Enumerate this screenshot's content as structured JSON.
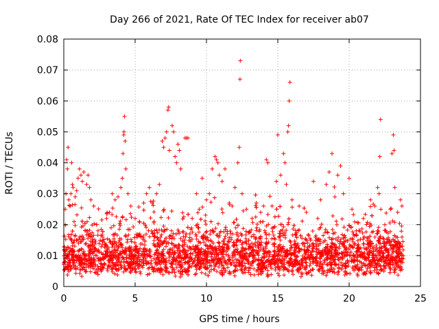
{
  "chart_data": {
    "type": "scatter",
    "title": "Day 266 of 2021, Rate Of TEC Index for receiver ab07",
    "xlabel": "GPS time / hours",
    "ylabel": "ROTI / TECUs",
    "xlim": [
      0,
      25
    ],
    "ylim": [
      0,
      0.08
    ],
    "x_ticks": [
      0,
      5,
      10,
      15,
      20,
      25
    ],
    "x_tick_labels": [
      "0",
      "5",
      "10",
      "15",
      "20",
      "25"
    ],
    "y_ticks": [
      0,
      0.01,
      0.02,
      0.03,
      0.04,
      0.05,
      0.06,
      0.07,
      0.08
    ],
    "y_tick_labels": [
      "0",
      "0.01",
      "0.02",
      "0.03",
      "0.04",
      "0.05",
      "0.06",
      "0.07",
      "0.08"
    ],
    "grid": true,
    "marker": "+",
    "color": "#ff0000",
    "series": [
      {
        "name": "ROTI",
        "points": [
          [
            0.05,
            0.012
          ],
          [
            0.1,
            0.025
          ],
          [
            0.15,
            0.03
          ],
          [
            0.2,
            0.041
          ],
          [
            0.25,
            0.038
          ],
          [
            0.3,
            0.045
          ],
          [
            0.35,
            0.028
          ],
          [
            0.45,
            0.026
          ],
          [
            0.5,
            0.03
          ],
          [
            0.55,
            0.04
          ],
          [
            0.6,
            0.033
          ],
          [
            0.65,
            0.032
          ],
          [
            0.8,
            0.029
          ],
          [
            0.9,
            0.031
          ],
          [
            1.0,
            0.035
          ],
          [
            1.1,
            0.038
          ],
          [
            1.2,
            0.036
          ],
          [
            1.3,
            0.034
          ],
          [
            1.4,
            0.037
          ],
          [
            1.6,
            0.033
          ],
          [
            1.7,
            0.036
          ],
          [
            1.8,
            0.032
          ],
          [
            1.9,
            0.028
          ],
          [
            2.1,
            0.026
          ],
          [
            2.4,
            0.018
          ],
          [
            2.7,
            0.016
          ],
          [
            3.0,
            0.022
          ],
          [
            3.2,
            0.024
          ],
          [
            3.4,
            0.03
          ],
          [
            3.6,
            0.028
          ],
          [
            3.8,
            0.029
          ],
          [
            4.0,
            0.032
          ],
          [
            4.1,
            0.035
          ],
          [
            4.15,
            0.043
          ],
          [
            4.2,
            0.049
          ],
          [
            4.22,
            0.05
          ],
          [
            4.25,
            0.055
          ],
          [
            4.3,
            0.047
          ],
          [
            4.35,
            0.038
          ],
          [
            4.5,
            0.03
          ],
          [
            4.7,
            0.026
          ],
          [
            5.0,
            0.022
          ],
          [
            5.3,
            0.021
          ],
          [
            5.6,
            0.027
          ],
          [
            5.8,
            0.03
          ],
          [
            6.0,
            0.032
          ],
          [
            6.2,
            0.027
          ],
          [
            6.5,
            0.03
          ],
          [
            6.7,
            0.033
          ],
          [
            6.9,
            0.047
          ],
          [
            7.0,
            0.045
          ],
          [
            7.1,
            0.048
          ],
          [
            7.2,
            0.05
          ],
          [
            7.3,
            0.057
          ],
          [
            7.35,
            0.058
          ],
          [
            7.4,
            0.044
          ],
          [
            7.6,
            0.052
          ],
          [
            7.7,
            0.05
          ],
          [
            7.8,
            0.042
          ],
          [
            7.9,
            0.04
          ],
          [
            8.0,
            0.046
          ],
          [
            8.1,
            0.044
          ],
          [
            8.2,
            0.038
          ],
          [
            8.5,
            0.048
          ],
          [
            8.6,
            0.048
          ],
          [
            8.7,
            0.048
          ],
          [
            9.0,
            0.022
          ],
          [
            9.3,
            0.03
          ],
          [
            9.5,
            0.025
          ],
          [
            9.7,
            0.035
          ],
          [
            10.0,
            0.028
          ],
          [
            10.2,
            0.03
          ],
          [
            10.4,
            0.038
          ],
          [
            10.6,
            0.042
          ],
          [
            10.7,
            0.041
          ],
          [
            10.8,
            0.04
          ],
          [
            10.9,
            0.036
          ],
          [
            11.1,
            0.034
          ],
          [
            11.3,
            0.038
          ],
          [
            11.6,
            0.027
          ],
          [
            11.8,
            0.026
          ],
          [
            12.0,
            0.032
          ],
          [
            12.2,
            0.04
          ],
          [
            12.3,
            0.045
          ],
          [
            12.35,
            0.067
          ],
          [
            12.37,
            0.073
          ],
          [
            12.5,
            0.03
          ],
          [
            12.8,
            0.025
          ],
          [
            13.2,
            0.022
          ],
          [
            13.5,
            0.027
          ],
          [
            13.8,
            0.024
          ],
          [
            14.0,
            0.026
          ],
          [
            14.2,
            0.041
          ],
          [
            14.3,
            0.04
          ],
          [
            14.6,
            0.026
          ],
          [
            14.9,
            0.034
          ],
          [
            15.0,
            0.049
          ],
          [
            15.2,
            0.036
          ],
          [
            15.4,
            0.043
          ],
          [
            15.5,
            0.04
          ],
          [
            15.6,
            0.033
          ],
          [
            15.7,
            0.05
          ],
          [
            15.75,
            0.052
          ],
          [
            15.8,
            0.06
          ],
          [
            15.85,
            0.066
          ],
          [
            16.0,
            0.028
          ],
          [
            16.5,
            0.026
          ],
          [
            17.0,
            0.024
          ],
          [
            17.5,
            0.034
          ],
          [
            17.8,
            0.022
          ],
          [
            18.0,
            0.028
          ],
          [
            18.4,
            0.033
          ],
          [
            18.6,
            0.037
          ],
          [
            18.8,
            0.043
          ],
          [
            19.0,
            0.029
          ],
          [
            19.2,
            0.036
          ],
          [
            19.4,
            0.039
          ],
          [
            19.6,
            0.03
          ],
          [
            20.0,
            0.035
          ],
          [
            20.2,
            0.025
          ],
          [
            20.5,
            0.018
          ],
          [
            21.0,
            0.022
          ],
          [
            21.5,
            0.028
          ],
          [
            21.8,
            0.026
          ],
          [
            22.0,
            0.032
          ],
          [
            22.1,
            0.03
          ],
          [
            22.15,
            0.042
          ],
          [
            22.2,
            0.054
          ],
          [
            22.5,
            0.02
          ],
          [
            22.9,
            0.025
          ],
          [
            23.0,
            0.043
          ],
          [
            23.1,
            0.049
          ],
          [
            23.15,
            0.044
          ],
          [
            23.2,
            0.032
          ],
          [
            23.4,
            0.024
          ],
          [
            23.6,
            0.028
          ],
          [
            23.7,
            0.026
          ]
        ],
        "band": {
          "x_start": 0.0,
          "x_end": 23.8,
          "y_floor": 0.003,
          "y_mean": 0.011,
          "y_spread": 0.013,
          "description_count": 3200
        }
      }
    ]
  }
}
